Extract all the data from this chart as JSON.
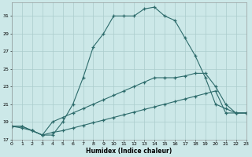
{
  "xlabel": "Humidex (Indice chaleur)",
  "bg_color": "#cce8e8",
  "grid_color": "#aacccc",
  "line_color": "#2d6b6b",
  "line1_x": [
    0,
    1,
    2,
    3,
    4,
    5,
    6,
    7,
    8,
    9,
    10,
    11,
    12,
    13,
    14,
    15,
    16,
    17,
    18,
    19,
    20,
    21,
    22,
    23
  ],
  "line1_y": [
    18.5,
    18.5,
    18.0,
    17.5,
    17.5,
    19.0,
    21.0,
    24.0,
    27.5,
    29.0,
    31.0,
    31.0,
    31.0,
    31.8,
    32.0,
    31.0,
    30.5,
    28.5,
    26.5,
    24.0,
    21.0,
    20.5,
    20.0,
    20.0
  ],
  "line2_x": [
    0,
    1,
    2,
    3,
    4,
    5,
    6,
    7,
    8,
    9,
    10,
    11,
    12,
    13,
    14,
    15,
    16,
    17,
    18,
    19,
    20,
    21,
    22,
    23
  ],
  "line2_y": [
    18.5,
    18.5,
    18.0,
    17.5,
    19.0,
    19.5,
    20.0,
    20.5,
    21.0,
    21.5,
    22.0,
    22.5,
    23.0,
    23.5,
    24.0,
    24.0,
    24.0,
    24.2,
    24.5,
    24.5,
    23.0,
    21.0,
    20.0,
    20.0
  ],
  "line3_x": [
    0,
    1,
    2,
    3,
    4,
    5,
    6,
    7,
    8,
    9,
    10,
    11,
    12,
    13,
    14,
    15,
    16,
    17,
    18,
    19,
    20,
    21,
    22,
    23
  ],
  "line3_y": [
    18.5,
    18.3,
    18.0,
    17.5,
    17.8,
    18.0,
    18.3,
    18.6,
    18.9,
    19.2,
    19.5,
    19.8,
    20.1,
    20.4,
    20.7,
    21.0,
    21.3,
    21.6,
    21.9,
    22.2,
    22.5,
    20.0,
    20.0,
    20.0
  ],
  "xlim": [
    0,
    23
  ],
  "ylim": [
    17,
    32.5
  ],
  "yticks": [
    17,
    19,
    21,
    23,
    25,
    27,
    29,
    31
  ],
  "xticks": [
    0,
    1,
    2,
    3,
    4,
    5,
    6,
    7,
    8,
    9,
    10,
    11,
    12,
    13,
    14,
    15,
    16,
    17,
    18,
    19,
    20,
    21,
    22,
    23
  ]
}
